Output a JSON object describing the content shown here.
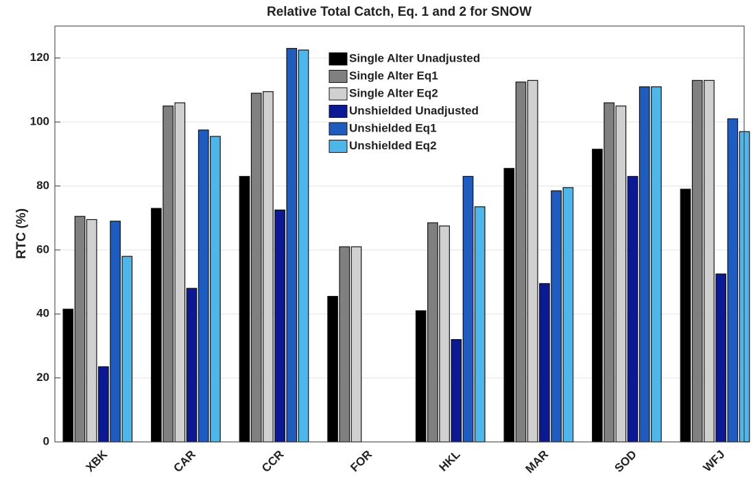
{
  "chart_data": {
    "type": "bar",
    "title": "Relative Total Catch, Eq. 1 and 2 for SNOW",
    "y_label": "RTC (%)",
    "categories": [
      "XBK",
      "CAR",
      "CCR",
      "FOR",
      "HKL",
      "MAR",
      "SOD",
      "WFJ"
    ],
    "series": [
      {
        "name": "Single Alter Unadjusted",
        "color": "#000000",
        "values": [
          41.5,
          73,
          83,
          45.5,
          41,
          85.5,
          91.5,
          79
        ]
      },
      {
        "name": "Single Alter Eq1",
        "color": "#808080",
        "values": [
          70.5,
          105,
          109,
          61,
          68.5,
          112.5,
          106,
          113
        ]
      },
      {
        "name": "Single Alter Eq2",
        "color": "#d0d0d0",
        "values": [
          69.5,
          106,
          109.5,
          61,
          67.5,
          113,
          105,
          113
        ]
      },
      {
        "name": "Unshielded Unadjusted",
        "color": "#0b1a94",
        "values": [
          23.5,
          48,
          72.5,
          null,
          32,
          49.5,
          83,
          52.5
        ]
      },
      {
        "name": "Unshielded Eq1",
        "color": "#1f5cc0",
        "values": [
          69,
          97.5,
          123,
          null,
          83,
          78.5,
          111,
          101
        ]
      },
      {
        "name": "Unshielded Eq2",
        "color": "#4db6ea",
        "values": [
          58,
          95.5,
          122.5,
          null,
          73.5,
          79.5,
          111,
          97
        ]
      }
    ],
    "ylim": [
      0,
      130
    ],
    "yticks": [
      0,
      20,
      40,
      60,
      80,
      100,
      120
    ],
    "grid": true
  }
}
